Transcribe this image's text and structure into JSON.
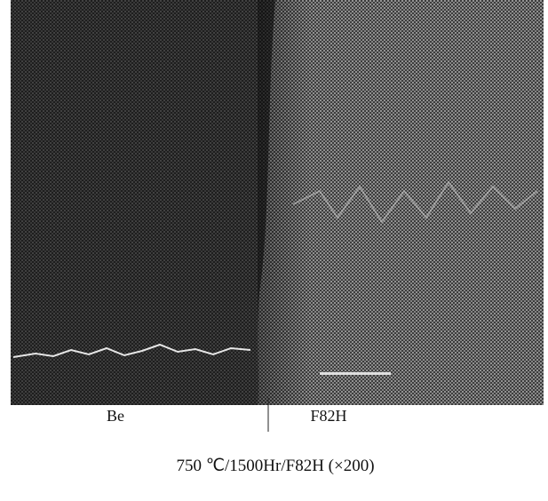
{
  "figure": {
    "left_label": "Be",
    "right_label": "F82H",
    "caption": "750 ℃/1500Hr/F82H (×200)"
  }
}
